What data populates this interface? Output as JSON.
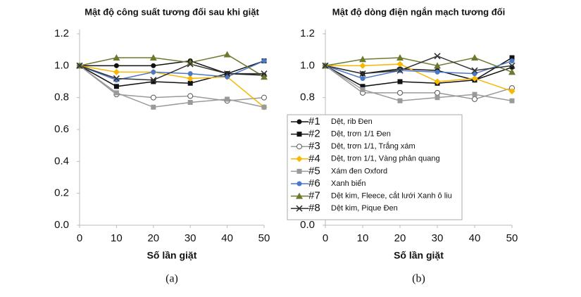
{
  "chart_data": [
    {
      "type": "line",
      "title": "Mật độ công suất tương đối sau khi giặt",
      "x_label": "Số lần giặt",
      "caption": "(a)",
      "x": [
        0,
        10,
        20,
        30,
        40,
        50
      ],
      "xlim": [
        0,
        50
      ],
      "xticks": [
        0,
        10,
        20,
        30,
        40,
        50
      ],
      "ylim": [
        0,
        1.2
      ],
      "yticks": [
        {
          "value": 0,
          "label": "0.0"
        },
        0.2,
        0.4,
        0.6,
        0.8,
        {
          "value": 1,
          "label": "1.0"
        },
        1.2
      ],
      "series": [
        {
          "color": "#111111",
          "marker": "circle",
          "values": [
            1.0,
            1.0,
            1.0,
            1.03,
            0.95,
            0.94
          ]
        },
        {
          "color": "#111111",
          "marker": "square",
          "values": [
            1.0,
            0.87,
            0.9,
            0.89,
            0.95,
            1.03
          ]
        },
        {
          "color": "#9a9a9a",
          "marker": "circle-open",
          "values": [
            1.0,
            0.82,
            0.8,
            0.81,
            0.78,
            0.8
          ]
        },
        {
          "color": "#f7b800",
          "marker": "diamond",
          "values": [
            1.0,
            0.96,
            0.96,
            0.92,
            0.93,
            0.74
          ]
        },
        {
          "color": "#9a9a9a",
          "marker": "square",
          "values": [
            1.0,
            0.83,
            0.74,
            0.77,
            0.79,
            0.74
          ]
        },
        {
          "color": "#4a78c8",
          "marker": "circle",
          "values": [
            1.0,
            0.91,
            0.96,
            0.95,
            0.93,
            1.03
          ]
        },
        {
          "color": "#6b7a2f",
          "marker": "triangle",
          "values": [
            1.0,
            1.05,
            1.05,
            1.02,
            1.07,
            0.93
          ]
        },
        {
          "color": "#333333",
          "marker": "x",
          "values": [
            1.0,
            0.92,
            0.91,
            1.01,
            0.95,
            0.95
          ]
        }
      ]
    },
    {
      "type": "line",
      "title": "Mật độ dòng điện ngắn mạch tương đối",
      "x_label": "Số lần giặt",
      "caption": "(b)",
      "x": [
        0,
        10,
        20,
        30,
        40,
        50
      ],
      "xlim": [
        0,
        50
      ],
      "xticks": [
        0,
        10,
        20,
        30,
        40,
        50
      ],
      "ylim": [
        0,
        1.2
      ],
      "yticks": [
        {
          "value": 0,
          "label": "0.0"
        },
        0.2,
        0.4,
        0.6,
        0.8,
        {
          "value": 1,
          "label": "1.0"
        },
        1.2
      ],
      "legend": "lower-left",
      "series": [
        {
          "name": "#1",
          "label": "Dệt, rib Đen",
          "color": "#111111",
          "marker": "circle",
          "values": [
            1.0,
            0.95,
            0.98,
            0.97,
            0.91,
            0.99
          ]
        },
        {
          "name": "#2",
          "label": "Dệt, trơn 1/1 Đen",
          "color": "#111111",
          "marker": "square",
          "values": [
            1.0,
            0.87,
            0.9,
            0.89,
            0.91,
            1.05
          ]
        },
        {
          "name": "#3",
          "label": "Dệt, trơn 1/1, Trắng xám",
          "color": "#9a9a9a",
          "marker": "circle-open",
          "values": [
            1.0,
            0.83,
            0.83,
            0.83,
            0.79,
            0.86
          ]
        },
        {
          "name": "#4",
          "label": "Dệt, trơn 1/1, Vàng phản quang",
          "color": "#f7b800",
          "marker": "diamond",
          "values": [
            1.0,
            1.0,
            1.01,
            0.9,
            0.92,
            0.84
          ]
        },
        {
          "name": "#5",
          "label": "Xám đen Oxford",
          "color": "#9a9a9a",
          "marker": "square",
          "values": [
            1.0,
            0.85,
            0.78,
            0.8,
            0.82,
            0.78
          ]
        },
        {
          "name": "#6",
          "label": "Xanh biển",
          "color": "#4a78c8",
          "marker": "circle",
          "values": [
            1.0,
            0.92,
            0.97,
            0.96,
            0.95,
            1.03
          ]
        },
        {
          "name": "#7",
          "label": "Dệt kim, Fleece, cắt lưới Xanh ô liu",
          "color": "#6b7a2f",
          "marker": "triangle",
          "values": [
            1.0,
            1.04,
            1.05,
            1.0,
            1.05,
            0.96
          ]
        },
        {
          "name": "#8",
          "label": "Dệt kim, Pique Đen",
          "color": "#333333",
          "marker": "x",
          "values": [
            1.0,
            0.95,
            0.97,
            1.06,
            0.97,
            1.0
          ]
        }
      ]
    }
  ]
}
